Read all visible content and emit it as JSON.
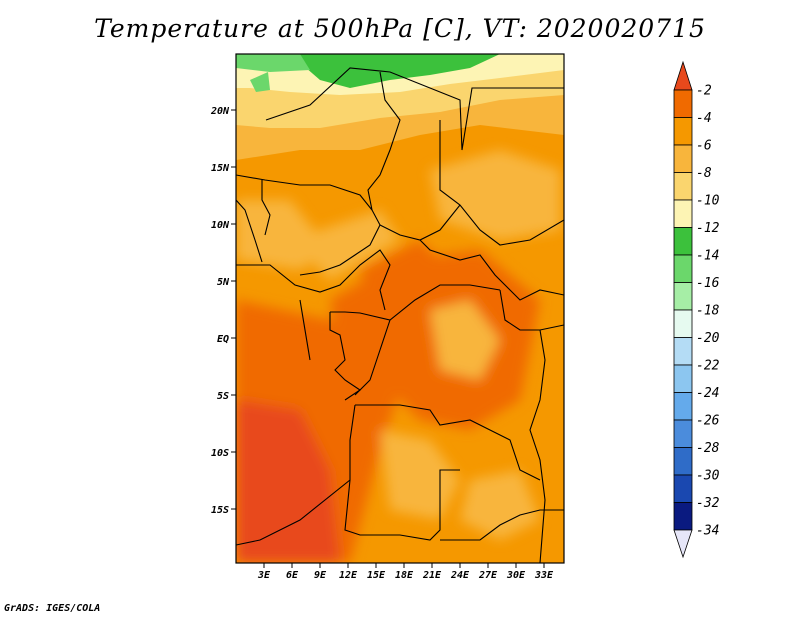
{
  "title": "Temperature at 500hPa [C], VT: 2020020715",
  "footer": "GrADS: IGES/COLA",
  "map": {
    "lat_labels": [
      "20N",
      "15N",
      "10N",
      "5N",
      "EQ",
      "5S",
      "10S",
      "15S"
    ],
    "lon_labels": [
      "3E",
      "6E",
      "9E",
      "12E",
      "15E",
      "18E",
      "21E",
      "24E",
      "27E",
      "30E",
      "33E"
    ]
  },
  "colorbar": {
    "labels": [
      "-2",
      "-4",
      "-6",
      "-8",
      "-10",
      "-12",
      "-14",
      "-16",
      "-18",
      "-20",
      "-22",
      "-24",
      "-26",
      "-28",
      "-30",
      "-32",
      "-34"
    ],
    "colors": [
      "#e8491c",
      "#f06a00",
      "#f59800",
      "#f8b53c",
      "#fad56e",
      "#fdf4b4",
      "#3cc13c",
      "#6bd76b",
      "#a6eea6",
      "#e6faf0",
      "#b4dcf5",
      "#8cc6f0",
      "#64aaeb",
      "#4b8cdc",
      "#2f6cc8",
      "#1a48b0",
      "#0a1a80",
      "#e6e6f8"
    ]
  }
}
